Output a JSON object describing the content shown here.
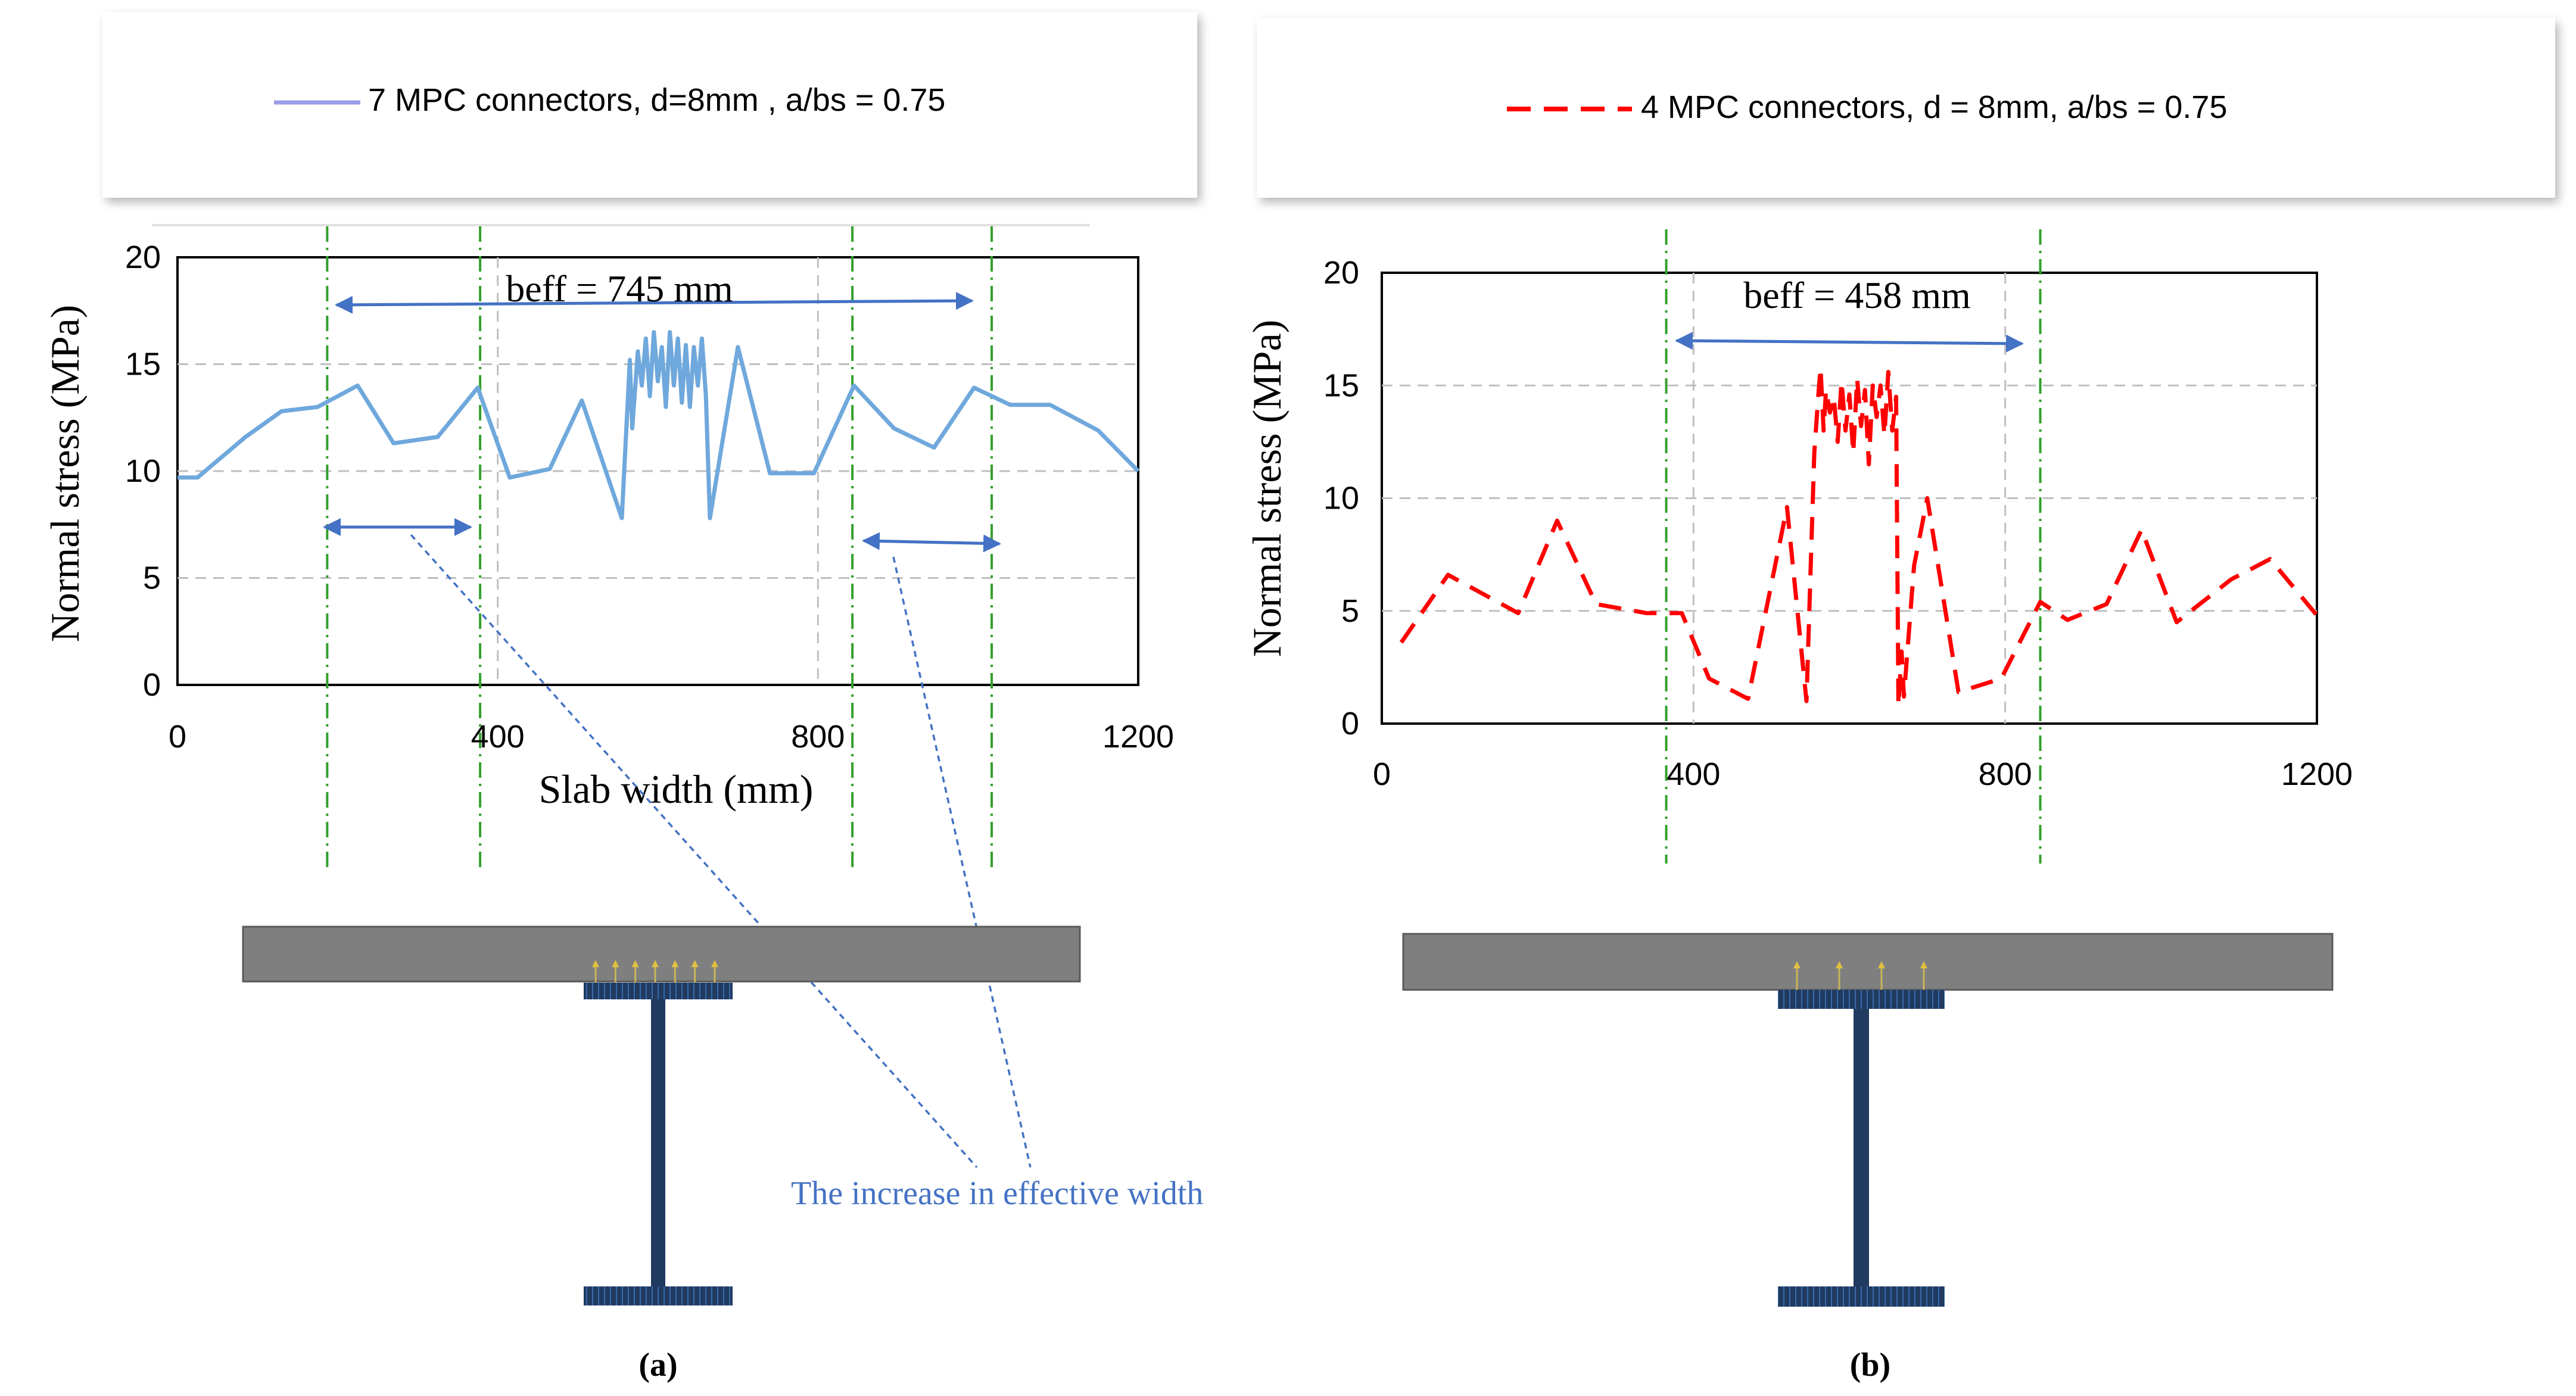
{
  "annotation": {
    "text": "The increase in effective width"
  },
  "chart_data": [
    {
      "type": "line",
      "panel_label": "(a)",
      "legend": "7 MPC connectors, d=8mm , a/bs = 0.75",
      "ylabel": "Normal stress (MPa)",
      "xlabel": "Slab width (mm)",
      "xlim": [
        0,
        1200
      ],
      "ylim": [
        0,
        20
      ],
      "xticks": [
        0,
        400,
        800,
        1200
      ],
      "yticks": [
        0,
        5,
        10,
        15,
        20
      ],
      "grid": "dashed",
      "color": "#6fa8dc",
      "line_style": "solid",
      "beff_label": "beff = 745 mm",
      "beff_bounds": [
        187,
        1017
      ],
      "inner_guides": [
        378,
        843
      ],
      "connectors": 7,
      "series": [
        {
          "name": "7 MPC connectors, d=8mm , a/bs = 0.75",
          "x": [
            0,
            25,
            85,
            130,
            175,
            225,
            270,
            325,
            375,
            415,
            465,
            505,
            555,
            565,
            568,
            575,
            580,
            585,
            590,
            595,
            600,
            605,
            610,
            615,
            620,
            625,
            630,
            635,
            640,
            645,
            650,
            655,
            660,
            665,
            700,
            740,
            795,
            845,
            895,
            945,
            995,
            1040,
            1090,
            1150,
            1200
          ],
          "y": [
            9.7,
            9.7,
            11.6,
            12.8,
            13.0,
            14.0,
            11.3,
            11.6,
            13.9,
            9.7,
            10.1,
            13.3,
            7.8,
            15.2,
            12.0,
            15.6,
            14.0,
            16.2,
            13.5,
            16.5,
            14.2,
            15.8,
            13.0,
            16.5,
            14.0,
            16.2,
            13.2,
            15.9,
            13.0,
            15.8,
            14.0,
            16.2,
            13.5,
            7.8,
            15.8,
            9.9,
            9.9,
            14.0,
            12.0,
            11.1,
            13.9,
            13.1,
            13.1,
            11.9,
            10.0
          ]
        }
      ]
    },
    {
      "type": "line",
      "panel_label": "(b)",
      "legend": "4 MPC connectors, d = 8mm, a/bs = 0.75",
      "ylabel": "Normal stress (MPa)",
      "xlabel": "",
      "xlim": [
        0,
        1200
      ],
      "ylim": [
        0,
        20
      ],
      "xticks": [
        0,
        400,
        800,
        1200
      ],
      "yticks": [
        0,
        5,
        10,
        15,
        20
      ],
      "grid": "dashed",
      "color": "#ff0000",
      "line_style": "dashed",
      "beff_label": "beff = 458 mm",
      "beff_bounds": [
        365,
        845
      ],
      "connectors": 4,
      "series": [
        {
          "name": "4 MPC connectors, d = 8mm, a/bs = 0.75",
          "x": [
            25,
            85,
            175,
            225,
            275,
            340,
            385,
            420,
            470,
            520,
            545,
            555,
            560,
            563,
            567,
            570,
            575,
            580,
            585,
            590,
            595,
            600,
            605,
            610,
            615,
            620,
            625,
            630,
            635,
            640,
            645,
            650,
            655,
            660,
            663,
            667,
            670,
            683,
            700,
            740,
            795,
            845,
            880,
            930,
            975,
            1020,
            1090,
            1140,
            1200
          ],
          "y": [
            3.6,
            6.6,
            4.9,
            9.0,
            5.3,
            4.9,
            4.9,
            2.0,
            1.1,
            9.6,
            1.0,
            12.0,
            14.5,
            15.8,
            13.0,
            14.8,
            13.8,
            14.5,
            12.5,
            15.2,
            13.0,
            14.6,
            12.0,
            15.3,
            13.2,
            14.8,
            11.5,
            15.0,
            13.6,
            15.0,
            12.8,
            15.6,
            13.0,
            14.5,
            0.8,
            3.2,
            1.2,
            7.0,
            10.0,
            1.4,
            2.0,
            5.4,
            4.6,
            5.3,
            8.6,
            4.5,
            6.4,
            7.3,
            4.8
          ]
        }
      ]
    }
  ]
}
